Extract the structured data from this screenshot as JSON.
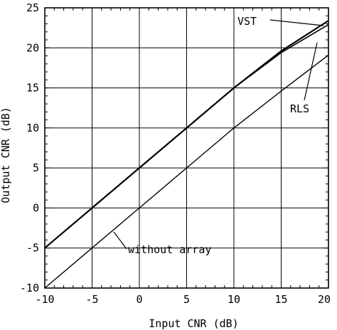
{
  "chart_data": {
    "type": "line",
    "title": "",
    "xlabel": "Input CNR (dB)",
    "ylabel": "Output CNR (dB)",
    "xlim": [
      -10,
      20
    ],
    "ylim": [
      -10,
      25
    ],
    "xticks": [
      -10,
      -5,
      0,
      5,
      10,
      15,
      20
    ],
    "yticks": [
      -10,
      -5,
      0,
      5,
      10,
      15,
      20,
      25
    ],
    "grid": true,
    "line_color": "#000000",
    "series": [
      {
        "name": "VST",
        "x": [
          -10,
          -5,
          0,
          5,
          10,
          15,
          20
        ],
        "y": [
          -5,
          0,
          5,
          10,
          15,
          19.6,
          23.4
        ]
      },
      {
        "name": "RLS",
        "x": [
          -10,
          -5,
          0,
          5,
          10,
          15,
          20
        ],
        "y": [
          -5,
          0,
          5,
          10,
          15,
          19.4,
          22.9
        ]
      },
      {
        "name": "without array",
        "x": [
          -10,
          -5,
          0,
          5,
          10,
          15,
          20
        ],
        "y": [
          -10,
          -5,
          0,
          5,
          10,
          14.6,
          19.1
        ]
      }
    ],
    "annotations": [
      "VST",
      "RLS",
      "without array"
    ]
  }
}
